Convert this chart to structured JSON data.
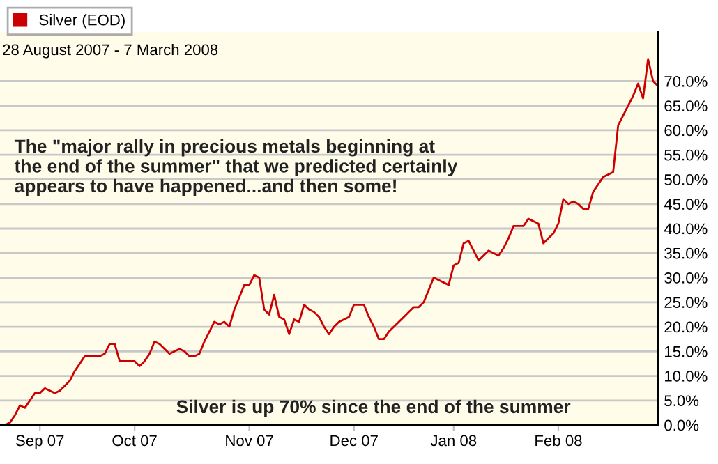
{
  "chart_data": {
    "type": "line",
    "subtitle": "28 August 2007 - 7 March 2008",
    "annotations": [
      "The \"major rally in precious metals beginning at the end of the summer\" that we predicted certainly appears to have happened...and then some!",
      "Silver is up 70% since the end of the summer"
    ],
    "categories": [
      null,
      null,
      null,
      null,
      null,
      null,
      null,
      null,
      "Sep 07",
      null,
      null,
      null,
      null,
      null,
      null,
      null,
      null,
      null,
      null,
      null,
      null,
      null,
      null,
      null,
      null,
      null,
      null,
      "Oct 07",
      null,
      null,
      null,
      null,
      null,
      null,
      null,
      null,
      null,
      null,
      null,
      null,
      null,
      null,
      null,
      null,
      null,
      null,
      null,
      null,
      null,
      null,
      "Nov 07",
      null,
      null,
      null,
      null,
      null,
      null,
      null,
      null,
      null,
      null,
      null,
      null,
      null,
      null,
      null,
      null,
      null,
      null,
      null,
      null,
      "Dec 07",
      null,
      null,
      null,
      null,
      null,
      null,
      null,
      null,
      null,
      null,
      null,
      null,
      null,
      null,
      null,
      null,
      null,
      null,
      null,
      "Jan 08",
      null,
      null,
      null,
      null,
      null,
      null,
      null,
      null,
      null,
      null,
      null,
      null,
      null,
      null,
      null,
      null,
      null,
      null,
      null,
      null,
      "Feb 08",
      null,
      null,
      null,
      null,
      null,
      null,
      null,
      null,
      null,
      null,
      null,
      null,
      null,
      null,
      null,
      null,
      null,
      null,
      null,
      null
    ],
    "series": [
      {
        "name": "Silver (EOD)",
        "color": "#cc0000",
        "values": [
          0,
          0,
          0.5,
          2,
          4,
          3.5,
          5,
          6.5,
          6.5,
          7.5,
          7,
          6.5,
          7,
          8,
          9,
          11,
          12.5,
          14,
          14,
          14,
          14,
          14.5,
          16.5,
          16.5,
          13,
          13,
          13,
          13,
          12,
          13,
          14.5,
          17,
          16.5,
          15.5,
          14.5,
          15,
          15.5,
          15,
          14,
          14,
          14.5,
          17,
          19,
          21,
          20.5,
          21,
          20,
          23.5,
          26,
          28.5,
          28.5,
          30.5,
          30,
          23.5,
          22.5,
          26.5,
          22,
          21.5,
          18.5,
          21.5,
          21,
          24.5,
          23.5,
          23,
          22,
          20,
          18.5,
          20,
          21,
          21.5,
          22,
          24.5,
          24.5,
          24.5,
          22,
          20,
          17.5,
          17.5,
          19,
          20,
          21,
          22,
          23,
          24,
          24,
          25,
          27.5,
          30,
          29.5,
          29,
          28.5,
          32.5,
          33,
          37,
          37.5,
          35.5,
          33.5,
          34.5,
          35.5,
          35,
          34.5,
          36,
          38,
          40.5,
          40.5,
          40.5,
          42,
          41.5,
          41,
          37,
          38,
          39,
          41,
          46,
          45,
          45.5,
          45,
          44,
          44,
          47.5,
          49,
          50.5,
          51,
          51.5,
          61,
          63,
          65,
          67,
          69.5,
          66.5,
          74.5,
          70,
          69
        ]
      }
    ],
    "ylim": [
      0,
      80
    ],
    "yticks": [
      {
        "value": 0,
        "label": "0.0%"
      },
      {
        "value": 5,
        "label": "5.0%"
      },
      {
        "value": 10,
        "label": "10.0%"
      },
      {
        "value": 15,
        "label": "15.0%"
      },
      {
        "value": 20,
        "label": "20.0%"
      },
      {
        "value": 25,
        "label": "25.0%"
      },
      {
        "value": 30,
        "label": "30.0%"
      },
      {
        "value": 35,
        "label": "35.0%"
      },
      {
        "value": 40,
        "label": "40.0%"
      },
      {
        "value": 45,
        "label": "45.0%"
      },
      {
        "value": 50,
        "label": "50.0%"
      },
      {
        "value": 55,
        "label": "55.0%"
      },
      {
        "value": 60,
        "label": "60.0%"
      },
      {
        "value": 65,
        "label": "65.0%"
      },
      {
        "value": 70,
        "label": "70.0%"
      }
    ],
    "grid": "y",
    "legend": "top left",
    "marker": "none",
    "line_style": "solid"
  }
}
